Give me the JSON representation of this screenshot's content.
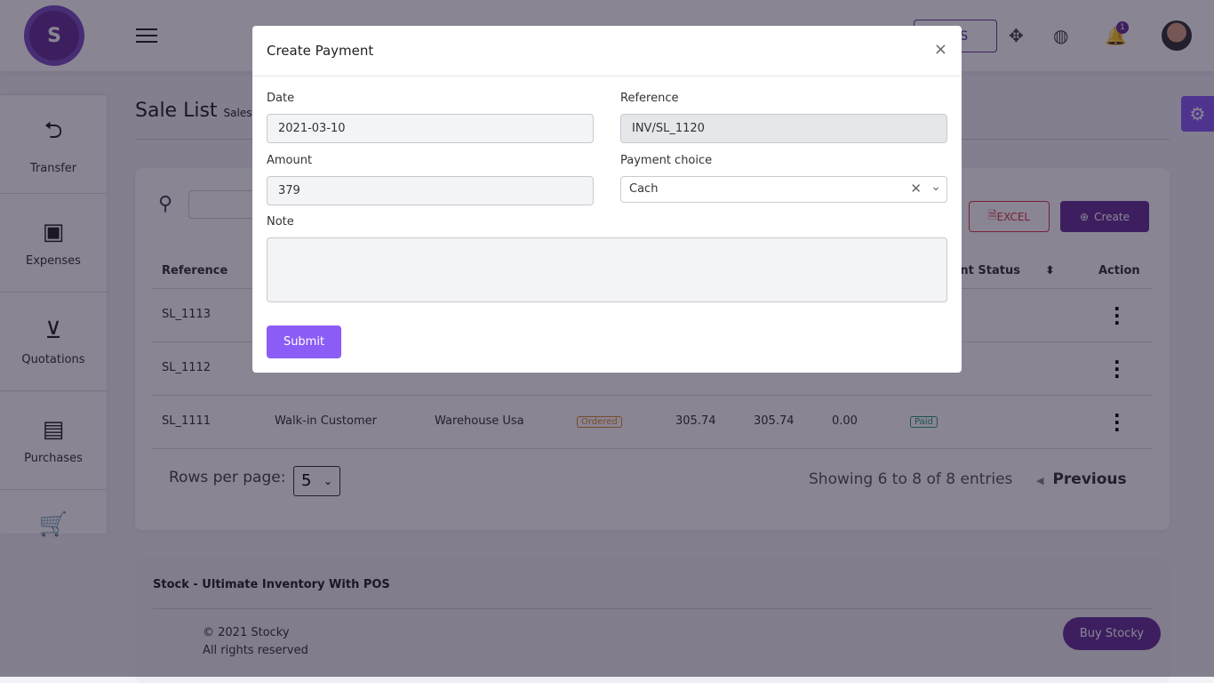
{
  "header": {
    "logo_letter": "S",
    "pos_label": "POS",
    "notification_count": "1"
  },
  "sidebar": {
    "items": [
      {
        "label": "Transfer",
        "icon": "transfer-icon"
      },
      {
        "label": "Expenses",
        "icon": "wallet-icon"
      },
      {
        "label": "Quotations",
        "icon": "basket-icon"
      },
      {
        "label": "Purchases",
        "icon": "receipt-icon"
      },
      {
        "label": "",
        "icon": "cart-icon"
      }
    ]
  },
  "page": {
    "title": "Sale List",
    "breadcrumb": "Sales"
  },
  "toolbar": {
    "excel_label": "EXCEL",
    "create_label": "Create"
  },
  "table": {
    "headers": {
      "reference": "Reference",
      "payment_status": "Payment Status",
      "action": "Action"
    },
    "rows": [
      {
        "reference": "SL_1113"
      },
      {
        "reference": "SL_1112"
      },
      {
        "reference": "SL_1111",
        "customer": "Walk-in Customer",
        "warehouse": "Warehouse Usa",
        "status": "Ordered",
        "grand_total": "305.74",
        "paid": "305.74",
        "due": "0.00",
        "payment_status": "Paid"
      }
    ]
  },
  "pagination": {
    "rows_per_page_label": "Rows per page:",
    "rows_per_page": "5",
    "showing": "Showing 6 to 8 of 8 entries",
    "previous": "Previous"
  },
  "footer": {
    "title": "Stock - Ultimate Inventory With POS",
    "copyright": "© 2021 Stocky",
    "rights": "All rights reserved",
    "buy_label": "Buy Stocky"
  },
  "modal": {
    "title": "Create Payment",
    "date_label": "Date",
    "date_value": "2021-03-10",
    "reference_label": "Reference",
    "reference_value": "INV/SL_1120",
    "amount_label": "Amount",
    "amount_value": "379",
    "payment_choice_label": "Payment choice",
    "payment_choice_value": "Cach",
    "note_label": "Note",
    "submit_label": "Submit"
  },
  "colors": {
    "primary": "#663399",
    "submit": "#8b5cf6",
    "danger": "#dc3545"
  }
}
